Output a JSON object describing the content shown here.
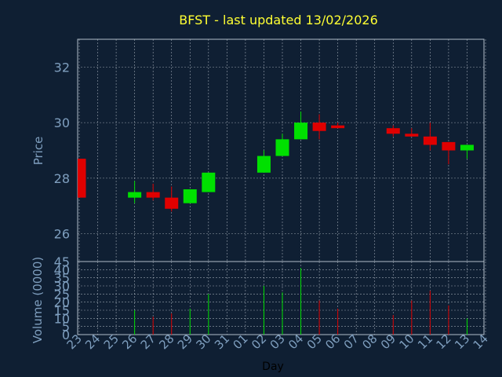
{
  "chart_data": {
    "type": "candlestick",
    "title": "BFST - last updated 13/02/2026",
    "xlabel": "Day",
    "price_panel": {
      "ylabel": "Price",
      "ylim": [
        25.0,
        33.0
      ],
      "yticks": [
        "26",
        "28",
        "30",
        "32"
      ]
    },
    "volume_panel": {
      "ylabel": "Volume (0000)",
      "ylim": [
        0,
        45
      ],
      "yticks": [
        "0",
        "5",
        "10",
        "15",
        "20",
        "25",
        "30",
        "35",
        "40",
        "45"
      ]
    },
    "days": [
      "23",
      "24",
      "25",
      "26",
      "27",
      "28",
      "29",
      "30",
      "31",
      "01",
      "02",
      "03",
      "04",
      "05",
      "06",
      "07",
      "08",
      "09",
      "10",
      "11",
      "12",
      "13",
      "14"
    ],
    "candles": [
      {
        "day": "23",
        "open": 28.7,
        "close": 27.3,
        "high": 28.7,
        "low": 27.3,
        "volume": 0
      },
      {
        "day": "26",
        "open": 27.3,
        "close": 27.5,
        "high": 27.9,
        "low": 27.1,
        "volume": 15
      },
      {
        "day": "27",
        "open": 27.5,
        "close": 27.3,
        "high": 27.8,
        "low": 27.2,
        "volume": 11
      },
      {
        "day": "28",
        "open": 27.3,
        "close": 26.9,
        "high": 27.7,
        "low": 26.8,
        "volume": 13
      },
      {
        "day": "29",
        "open": 27.1,
        "close": 27.6,
        "high": 27.6,
        "low": 27.1,
        "volume": 16
      },
      {
        "day": "30",
        "open": 27.5,
        "close": 28.2,
        "high": 28.2,
        "low": 27.5,
        "volume": 25
      },
      {
        "day": "02",
        "open": 28.2,
        "close": 28.8,
        "high": 29.0,
        "low": 28.2,
        "volume": 30
      },
      {
        "day": "03",
        "open": 28.8,
        "close": 29.4,
        "high": 29.6,
        "low": 28.8,
        "volume": 26
      },
      {
        "day": "04",
        "open": 29.4,
        "close": 30.0,
        "high": 30.4,
        "low": 29.4,
        "volume": 41
      },
      {
        "day": "05",
        "open": 30.0,
        "close": 29.7,
        "high": 30.3,
        "low": 29.4,
        "volume": 21
      },
      {
        "day": "06",
        "open": 29.9,
        "close": 29.8,
        "high": 30.0,
        "low": 29.8,
        "volume": 16
      },
      {
        "day": "09",
        "open": 29.8,
        "close": 29.6,
        "high": 29.9,
        "low": 29.5,
        "volume": 12
      },
      {
        "day": "10",
        "open": 29.6,
        "close": 29.5,
        "high": 29.8,
        "low": 29.5,
        "volume": 21
      },
      {
        "day": "11",
        "open": 29.5,
        "close": 29.2,
        "high": 30.0,
        "low": 29.0,
        "volume": 27
      },
      {
        "day": "12",
        "open": 29.3,
        "close": 29.0,
        "high": 29.3,
        "low": 28.5,
        "volume": 18
      },
      {
        "day": "13",
        "open": 29.0,
        "close": 29.2,
        "high": 29.2,
        "low": 28.7,
        "volume": 10
      }
    ]
  },
  "colors": {
    "background": "#0f1f33",
    "title": "#ffff33",
    "axis_label": "#7f9fbf",
    "up": "#00e000",
    "down": "#e00000",
    "grid": "#c8d0d8",
    "frame": "#b0bcc8"
  }
}
